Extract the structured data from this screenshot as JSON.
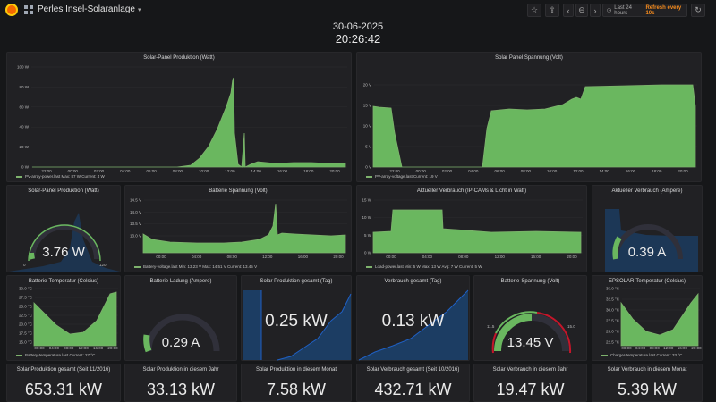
{
  "header": {
    "title": "Perles Insel-Solaranlage",
    "time_range": "Last 24 hours",
    "refresh": "Refresh every 10s"
  },
  "clock": {
    "date": "30-06-2025",
    "time": "20:26:42"
  },
  "colors": {
    "green": "#7eb26d",
    "fill_green": "#6ab75f",
    "blue": "#1f60c4",
    "dark_blue": "#1c3d63",
    "orange": "#f58b1d",
    "red": "#c4162a"
  },
  "icons": [
    "star-icon",
    "share-icon",
    "chevron-left-icon",
    "zoom-out-icon",
    "chevron-right-icon",
    "clock-icon",
    "refresh-icon"
  ],
  "row1": {
    "left": {
      "title": "Solar-Panel Produktion (Watt)",
      "yticks": [
        "100 W",
        "80 W",
        "60 W",
        "40 W",
        "20 W",
        "0 W"
      ],
      "xticks": [
        "22:00",
        "00:00",
        "02:00",
        "04:00",
        "06:00",
        "08:00",
        "10:00",
        "12:00",
        "14:00",
        "16:00",
        "18:00",
        "20:00"
      ],
      "legend": "PV-array-power.last  Max: 87 W  Current: 4 W"
    },
    "right": {
      "title": "Solar Panel Spannung (Volt)",
      "yticks": [
        "20 V",
        "15 V",
        "10 V",
        "5 V",
        "0 V"
      ],
      "xticks": [
        "22:00",
        "00:00",
        "02:00",
        "04:00",
        "06:00",
        "08:00",
        "10:00",
        "12:00",
        "14:00",
        "16:00",
        "18:00",
        "20:00"
      ],
      "legend": "PV-array-voltage.last  Current: 19 V"
    }
  },
  "row2": {
    "gauge1": {
      "title": "Solar-Panel Produktion (Watt)",
      "value": "3.76 W",
      "fraction": 0.04,
      "min": "0",
      "max": "120"
    },
    "battery_chart": {
      "title": "Batterie Spannung (Volt)",
      "yticks": [
        "14.5 V",
        "14.0 V",
        "13.5 V",
        "13.0 V"
      ],
      "xticks": [
        "00:00",
        "04:00",
        "08:00",
        "12:00",
        "16:00",
        "20:00"
      ],
      "legend": "Battery-voltage.last  Min: 13.23 V  Max: 14.51 V  Current: 13.45 V"
    },
    "consumption_chart": {
      "title": "Aktueller Verbrauch (IP-CAMs & Licht in Watt)",
      "yticks": [
        "15 W",
        "10 W",
        "5 W",
        "0 W"
      ],
      "xticks": [
        "00:00",
        "04:00",
        "08:00",
        "12:00",
        "16:00",
        "20:00"
      ],
      "legend": "Load-power.last  Min: 5 W  Max: 13 W  Avg: 7 W  Current: 5 W"
    },
    "gauge2": {
      "title": "Aktueller Verbrauch (Ampere)",
      "value": "0.39 A",
      "fraction": 0.2
    }
  },
  "row3": {
    "temp_chart": {
      "title": "Batterie-Temperatur (Celsius)",
      "yticks": [
        "30.0 °C",
        "27.5 °C",
        "25.0 °C",
        "22.5 °C",
        "20.0 °C",
        "17.5 °C",
        "15.0 °C"
      ],
      "xticks": [
        "00:00",
        "04:00",
        "08:00",
        "12:00",
        "16:00",
        "20:00"
      ],
      "legend": "Battery-temperature.last  Current: 27 °C"
    },
    "charge_gauge": {
      "title": "Batterie Ladung (Ampere)",
      "value": "0.29 A",
      "fraction": 0.12
    },
    "prod_day": {
      "title": "Solar Produktion gesamt (Tag)",
      "value": "0.25 kW"
    },
    "cons_day": {
      "title": "Verbrauch gesamt (Tag)",
      "value": "0.13 kW"
    },
    "volt_gauge": {
      "title": "Batterie-Spannung (Volt)",
      "value": "13.45 V",
      "fraction": 0.55,
      "min": "11.5",
      "max": "15.0"
    },
    "ctrl_temp": {
      "title": "EPSOLAR-Temperatur (Celsius)",
      "yticks": [
        "35.0 °C",
        "32.5 °C",
        "30.0 °C",
        "27.5 °C",
        "25.0 °C",
        "22.5 °C"
      ],
      "xticks": [
        "00:00",
        "04:00",
        "08:00",
        "12:00",
        "16:00",
        "20:00"
      ],
      "legend": "Charger-temperature.last  Current: 33 °C"
    }
  },
  "row4": [
    {
      "title": "Solar Produktion gesamt (Seit 11/2016)",
      "value": "653.31 kW"
    },
    {
      "title": "Solar Produktion in diesem Jahr",
      "value": "33.13 kW"
    },
    {
      "title": "Solar Produktion in diesem Monat",
      "value": "7.58 kW"
    },
    {
      "title": "Solar Verbrauch gesamt (Seit 10/2016)",
      "value": "432.71 kW"
    },
    {
      "title": "Solar Verbrauch in diesem Jahr",
      "value": "19.47 kW"
    },
    {
      "title": "Solar Verbrauch in diesem Monat",
      "value": "5.39 kW"
    }
  ]
}
